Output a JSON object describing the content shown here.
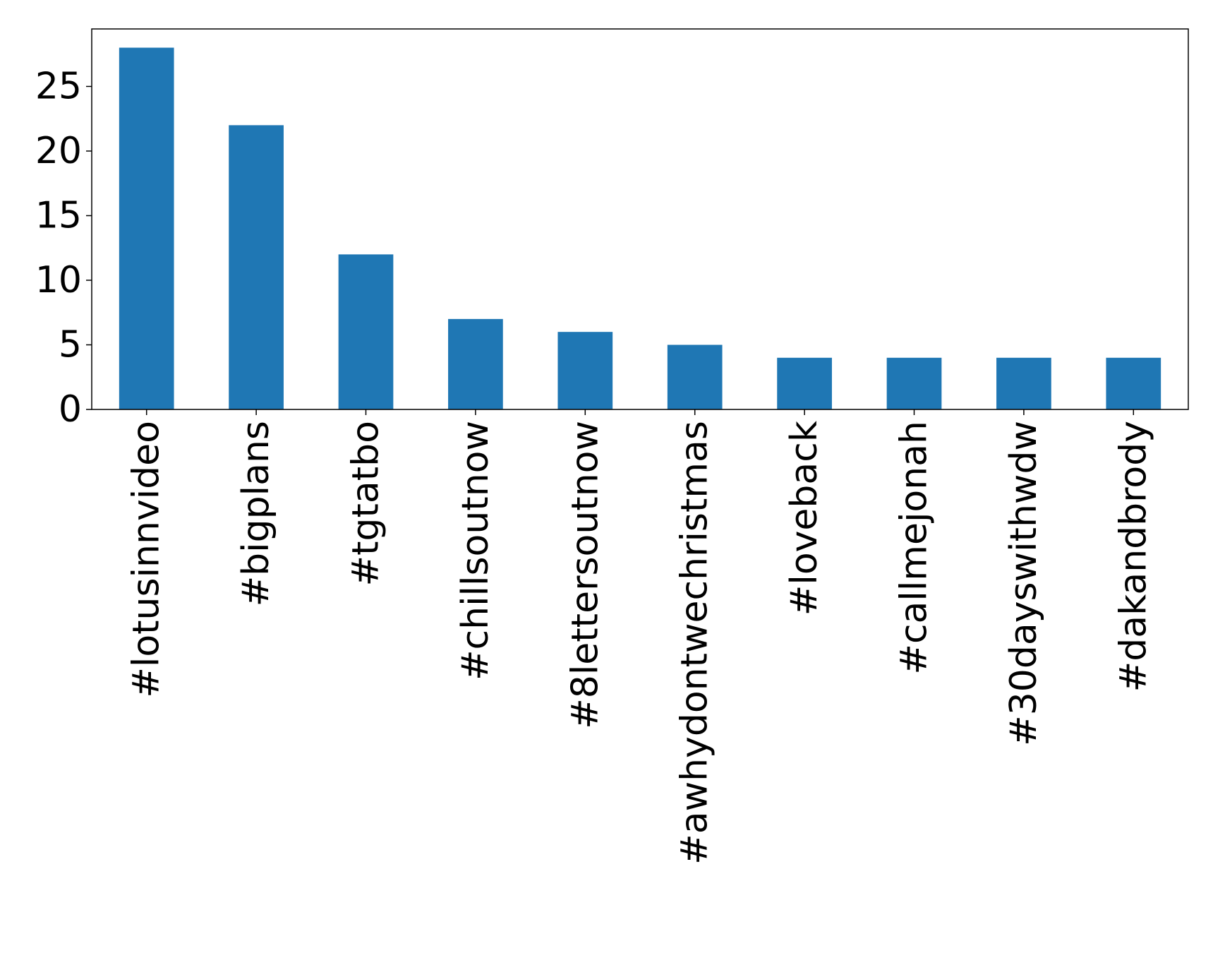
{
  "chart_data": {
    "type": "bar",
    "categories": [
      "#lotusinnvideo",
      "#bigplans",
      "#tgtatbo",
      "#chillsoutnow",
      "#8lettersoutnow",
      "#awhydontwechristmas",
      "#loveback",
      "#callmejonah",
      "#30dayswithwdw",
      "#dakandbrody"
    ],
    "values": [
      28,
      22,
      12,
      7,
      6,
      5,
      4,
      4,
      4,
      4
    ],
    "color": "#1f77b4",
    "ylim": [
      0,
      29.45
    ],
    "yticks": [
      0,
      5,
      10,
      15,
      20,
      25
    ],
    "grid": false
  }
}
